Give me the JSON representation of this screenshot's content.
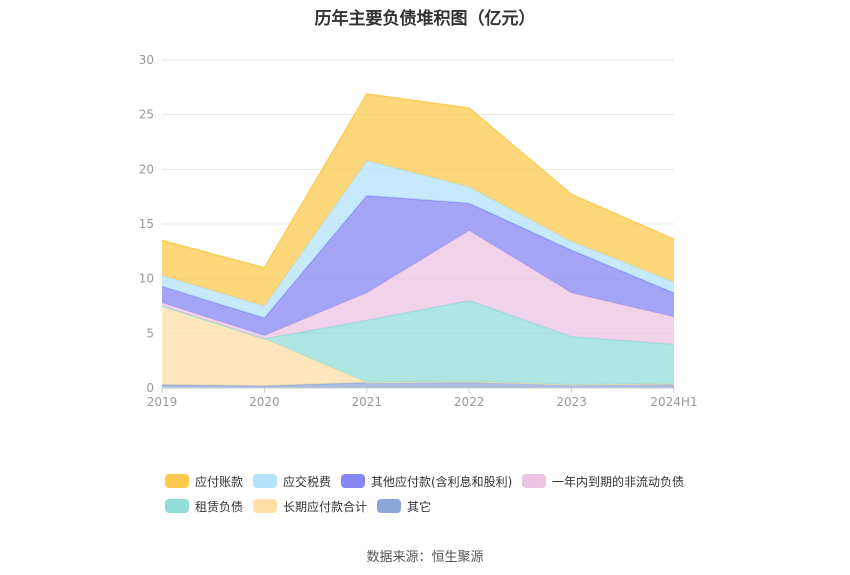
{
  "chart_data": {
    "type": "area",
    "title": "历年主要负债堆积图（亿元）",
    "categories": [
      "2019",
      "2020",
      "2021",
      "2022",
      "2023",
      "2024H1"
    ],
    "stacked": true,
    "ylim": [
      0,
      30
    ],
    "yticks": [
      "0",
      "5",
      "10",
      "15",
      "20",
      "25",
      "30"
    ],
    "grid": true,
    "legend_position": "bottom",
    "series": [
      {
        "name": "应付账款",
        "color": "#fdc94e",
        "values": [
          3.2,
          3.5,
          6.1,
          7.2,
          4.3,
          3.9
        ]
      },
      {
        "name": "应交税费",
        "color": "#b3e3fa",
        "values": [
          1.0,
          1.1,
          3.2,
          1.5,
          0.8,
          1.0
        ]
      },
      {
        "name": "其他应付款(含利息和股利)",
        "color": "#8587f3",
        "values": [
          1.5,
          1.6,
          8.9,
          2.5,
          3.9,
          2.2
        ]
      },
      {
        "name": "一年内到期的非流动负债",
        "color": "#ebc4e2",
        "values": [
          0.3,
          0.3,
          2.5,
          6.4,
          4.0,
          2.5
        ]
      },
      {
        "name": "租赁负债",
        "color": "#92dcd9",
        "values": [
          0.0,
          0.0,
          5.7,
          7.4,
          4.4,
          3.6
        ]
      },
      {
        "name": "长期应付款合计",
        "color": "#fedfa6",
        "values": [
          7.2,
          4.3,
          0.0,
          0.0,
          0.0,
          0.0
        ]
      },
      {
        "name": "其它",
        "color": "#8da6d9",
        "values": [
          0.3,
          0.2,
          0.5,
          0.6,
          0.3,
          0.4
        ]
      }
    ]
  },
  "source": "数据来源：恒生聚源"
}
